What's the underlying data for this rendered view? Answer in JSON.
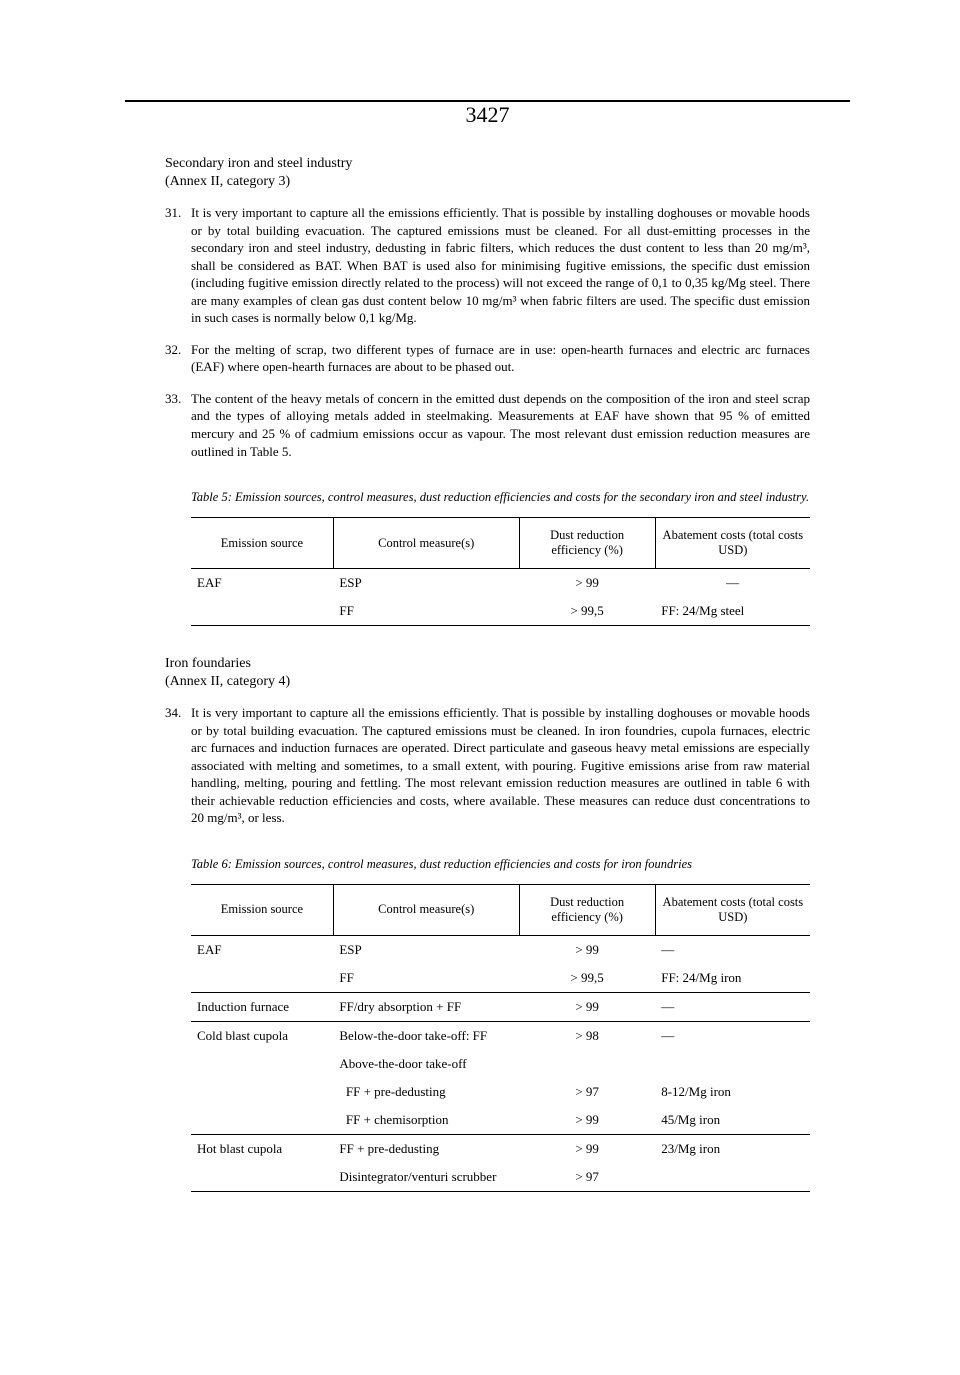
{
  "page_number": "3427",
  "section1": {
    "title": "Secondary iron and steel industry",
    "subtitle": "(Annex II, category 3)",
    "paras": [
      {
        "num": "31.",
        "text": "It is very important to capture all the emissions efficiently. That is possible by installing doghouses or movable hoods or by total building evacuation. The captured emissions must be cleaned. For all dust-emitting processes in the secondary iron and steel industry, dedusting in fabric filters, which reduces the dust content to less than 20 mg/m³, shall be considered as BAT. When BAT is used also for minimising fugitive emissions, the specific dust emission (including fugitive emission directly related to the process) will not exceed the range of 0,1 to 0,35 kg/Mg steel. There are many examples of clean gas dust content below 10 mg/m³ when fabric filters are used. The specific dust emission in such cases is normally below 0,1 kg/Mg."
      },
      {
        "num": "32.",
        "text": "For the melting of scrap, two different types of furnace are in use: open-hearth furnaces and electric arc furnaces (EAF) where open-hearth furnaces are about to be phased out."
      },
      {
        "num": "33.",
        "text": "The content of the heavy metals of concern in the emitted dust depends on the composition of the iron and steel scrap and the types of alloying metals added in steelmaking. Measurements at EAF have shown that 95 % of emitted mercury and 25 % of cadmium emissions occur as vapour. The most relevant dust emission reduction measures are outlined in Table 5."
      }
    ]
  },
  "table5": {
    "caption": "Table 5: Emission sources, control measures, dust reduction efficiencies and costs for the secondary iron and steel industry.",
    "headers": [
      "Emission source",
      "Control measure(s)",
      "Dust reduction efficiency (%)",
      "Abatement costs (total costs USD)"
    ],
    "rows": [
      {
        "c0": "EAF",
        "c1": "ESP",
        "c2": "> 99",
        "c3": "—"
      },
      {
        "c0": "",
        "c1": "FF",
        "c2": "> 99,5",
        "c3": "FF: 24/Mg steel"
      }
    ]
  },
  "section2": {
    "title": "Iron foundaries",
    "subtitle": "(Annex II, category 4)",
    "paras": [
      {
        "num": "34.",
        "text": "It is very important to capture all the emissions efficiently. That is possible by installing doghouses or movable hoods or by total building evacuation. The captured emissions must be cleaned. In iron foundries, cupola furnaces, electric arc furnaces and induction furnaces are operated. Direct particulate and gaseous heavy metal emissions are especially associated with melting and sometimes, to a small extent, with pouring. Fugitive emissions arise from raw material handling, melting, pouring and fettling. The most relevant emission reduction measures are outlined in table 6 with their achievable reduction efficiencies and costs, where available. These measures can reduce dust concentrations to 20 mg/m³, or less."
      }
    ]
  },
  "table6": {
    "caption": "Table 6: Emission sources, control measures, dust reduction efficiencies and costs for iron foundries",
    "headers": [
      "Emission source",
      "Control measure(s)",
      "Dust reduction efficiency (%)",
      "Abatement costs (total costs USD)"
    ],
    "rows": [
      {
        "c0": "EAF",
        "c1": "ESP",
        "c2": "> 99",
        "c3": "—",
        "sep": false
      },
      {
        "c0": "",
        "c1": "FF",
        "c2": "> 99,5",
        "c3": "FF: 24/Mg iron",
        "sep": true
      },
      {
        "c0": "Induction furnace",
        "c1": "FF/dry absorption + FF",
        "c2": "> 99",
        "c3": "—",
        "sep": true
      },
      {
        "c0": "Cold blast cupola",
        "c1": "Below-the-door take-off: FF",
        "c2": "> 98",
        "c3": "—",
        "sep": false
      },
      {
        "c0": "",
        "c1": "Above-the-door take-off",
        "c2": "",
        "c3": "",
        "sep": false
      },
      {
        "c0": "",
        "c1": "  FF + pre-dedusting",
        "c2": "> 97",
        "c3": "8-12/Mg iron",
        "sep": false
      },
      {
        "c0": "",
        "c1": "  FF + chemisorption",
        "c2": "> 99",
        "c3": "45/Mg iron",
        "sep": true
      },
      {
        "c0": "Hot blast cupola",
        "c1": "FF + pre-dedusting",
        "c2": "> 99",
        "c3": "23/Mg iron",
        "sep": false
      },
      {
        "c0": "",
        "c1": "Disintegrator/venturi scrubber",
        "c2": "> 97",
        "c3": "",
        "sep": false
      }
    ]
  }
}
